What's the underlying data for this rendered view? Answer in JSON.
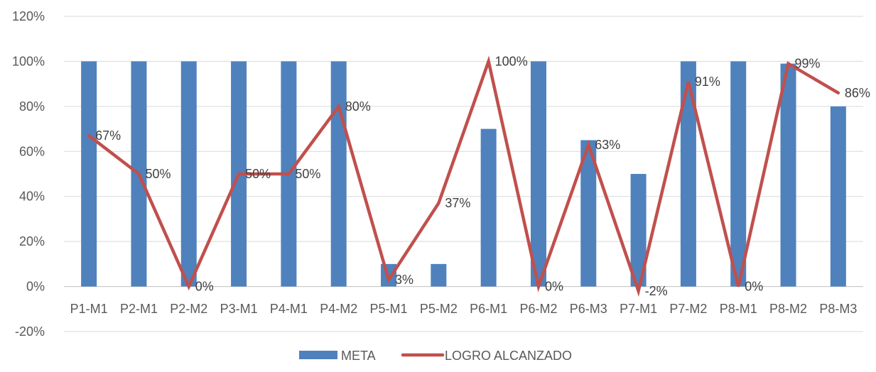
{
  "chart_data": {
    "type": "bar",
    "categories": [
      "P1-M1",
      "P2-M1",
      "P2-M2",
      "P3-M1",
      "P4-M1",
      "P4-M2",
      "P5-M1",
      "P5-M2",
      "P6-M1",
      "P6-M2",
      "P6-M3",
      "P7-M1",
      "P7-M2",
      "P8-M1",
      "P8-M2",
      "P8-M3"
    ],
    "ylim": [
      -20,
      120
    ],
    "y_ticks": [
      -20,
      0,
      20,
      40,
      60,
      80,
      100,
      120
    ],
    "y_tick_labels": [
      "-20%",
      "0%",
      "20%",
      "40%",
      "60%",
      "80%",
      "100%",
      "120%"
    ],
    "grid": true,
    "legend_position": "bottom",
    "series": [
      {
        "name": "META",
        "type": "bar",
        "color": "#4F81BD",
        "values": [
          100,
          100,
          100,
          100,
          100,
          100,
          10,
          10,
          70,
          100,
          65,
          50,
          100,
          100,
          99,
          80
        ]
      },
      {
        "name": "LOGRO ALCANZADO",
        "type": "line",
        "color": "#C0504D",
        "values": [
          67,
          50,
          0,
          50,
          50,
          80,
          3,
          37,
          100,
          0,
          63,
          -2,
          91,
          0,
          99,
          86
        ],
        "data_labels": [
          "67%",
          "50%",
          "0%",
          "50%",
          "50%",
          "80%",
          "3%",
          "37%",
          "100%",
          "0%",
          "63%",
          "-2%",
          "91%",
          "0%",
          "99%",
          "86%"
        ]
      }
    ]
  }
}
